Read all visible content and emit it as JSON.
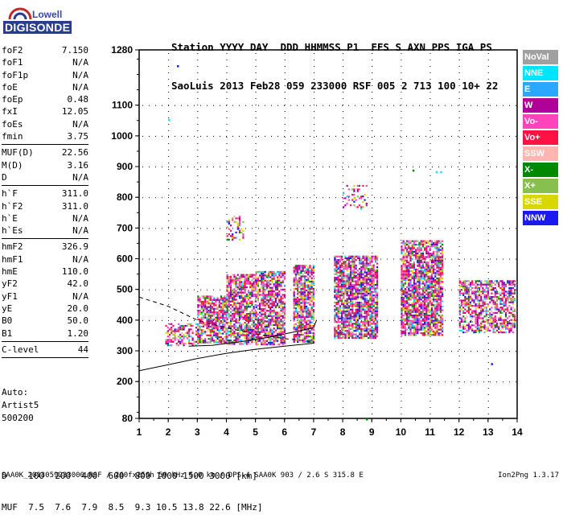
{
  "logo": {
    "line1": "Lowell",
    "line2": "DIGISONDE"
  },
  "header": {
    "line1": "Station YYYY DAY  DDD HHMMSS P1  FFS S AXN PPS IGA PS",
    "line2": "SaoLuis 2013 Feb28 059 233000 RSF 005 2 713 100 10+ 22"
  },
  "params": [
    {
      "label": "foF2",
      "value": "7.150"
    },
    {
      "label": "foF1",
      "value": "N/A"
    },
    {
      "label": "foF1p",
      "value": "N/A"
    },
    {
      "label": "foE",
      "value": "N/A"
    },
    {
      "label": "foEp",
      "value": "0.48"
    },
    {
      "label": "fxI",
      "value": "12.05"
    },
    {
      "label": "foEs",
      "value": "N/A"
    },
    {
      "label": "fmin",
      "value": "3.75"
    },
    {
      "sep": true
    },
    {
      "label": "MUF(D)",
      "value": "22.56"
    },
    {
      "label": "M(D)",
      "value": "3.16"
    },
    {
      "label": "D",
      "value": "N/A"
    },
    {
      "sep": true
    },
    {
      "label": "h`F",
      "value": "311.0"
    },
    {
      "label": "h`F2",
      "value": "311.0"
    },
    {
      "label": "h`E",
      "value": "N/A"
    },
    {
      "label": "h`Es",
      "value": "N/A"
    },
    {
      "sep": true
    },
    {
      "label": "hmF2",
      "value": "326.9"
    },
    {
      "label": "hmF1",
      "value": "N/A"
    },
    {
      "label": "hmE",
      "value": "110.0"
    },
    {
      "label": "yF2",
      "value": "42.0"
    },
    {
      "label": "yF1",
      "value": "N/A"
    },
    {
      "label": "yE",
      "value": "20.0"
    },
    {
      "label": "B0",
      "value": "50.0"
    },
    {
      "label": "B1",
      "value": "1.20"
    },
    {
      "sep": true
    },
    {
      "label": "C-level",
      "value": "44"
    },
    {
      "sep": true
    }
  ],
  "auto": {
    "line1": "Auto:",
    "line2": "Artist5",
    "line3": "500200"
  },
  "dtable": {
    "row1": "D    100  200  400  600  800 1000 1500 3000 [km]",
    "row2": "MUF  7.5  7.6  7.9  8.5  9.3 10.5 13.8 22.6 [MHz]"
  },
  "footer": {
    "left": "SAA0K_2013059233000.RSF / 260fx256h 50 kHz 5.0 km / DPS-4 SAA0K 903 / 2.6 S 315.8 E",
    "right": "Ion2Png 1.3.17"
  },
  "legend": [
    {
      "label": "NoVal",
      "color": "#a0a0a0"
    },
    {
      "label": "NNE",
      "color": "#00e5ff"
    },
    {
      "label": "E",
      "color": "#2aa7ff"
    },
    {
      "label": "W",
      "color": "#b0009a"
    },
    {
      "label": "Vo-",
      "color": "#ff44bb"
    },
    {
      "label": "Vo+",
      "color": "#ff1144"
    },
    {
      "label": "SSW",
      "color": "#ffb6b0"
    },
    {
      "label": "X-",
      "color": "#008800"
    },
    {
      "label": "X+",
      "color": "#88c050"
    },
    {
      "label": "SSE",
      "color": "#d8d800"
    },
    {
      "label": "NNW",
      "color": "#1a1aee"
    }
  ],
  "chart_data": {
    "type": "scatter",
    "xlim": [
      1,
      14
    ],
    "ylim": [
      80,
      1280
    ],
    "x_ticks": [
      "1",
      "2",
      "3",
      "4",
      "5",
      "6",
      "7",
      "8",
      "9",
      "10",
      "11",
      "12",
      "13",
      "14"
    ],
    "y_ticks": [
      "80",
      "200",
      "300",
      "400",
      "500",
      "600",
      "700",
      "800",
      "900",
      "1000",
      "1100",
      "1280"
    ],
    "grid": true,
    "clusters": [
      {
        "fmin": 1.9,
        "fmax": 3.0,
        "hmin": 320,
        "hmax": 390,
        "density": 0.55
      },
      {
        "fmin": 3.0,
        "fmax": 4.0,
        "hmin": 330,
        "hmax": 480,
        "density": 0.75
      },
      {
        "fmin": 4.0,
        "fmax": 5.0,
        "hmin": 320,
        "hmax": 550,
        "density": 0.75
      },
      {
        "fmin": 4.0,
        "fmax": 4.6,
        "hmin": 660,
        "hmax": 740,
        "density": 0.35
      },
      {
        "fmin": 5.0,
        "fmax": 6.0,
        "hmin": 320,
        "hmax": 560,
        "density": 0.75
      },
      {
        "fmin": 6.3,
        "fmax": 7.0,
        "hmin": 330,
        "hmax": 580,
        "density": 0.75
      },
      {
        "fmin": 7.7,
        "fmax": 9.2,
        "hmin": 340,
        "hmax": 610,
        "density": 0.8
      },
      {
        "fmin": 8.0,
        "fmax": 8.8,
        "hmin": 760,
        "hmax": 840,
        "density": 0.25
      },
      {
        "fmin": 10.0,
        "fmax": 11.4,
        "hmin": 350,
        "hmax": 660,
        "density": 0.8
      },
      {
        "fmin": 12.0,
        "fmax": 13.9,
        "hmin": 360,
        "hmax": 530,
        "density": 0.6
      }
    ],
    "trace_lower": [
      [
        1,
        235
      ],
      [
        2,
        255
      ],
      [
        3,
        275
      ],
      [
        4,
        292
      ],
      [
        5,
        305
      ],
      [
        6,
        315
      ],
      [
        7,
        325
      ]
    ],
    "trace_upper": [
      [
        1,
        475
      ],
      [
        2,
        445
      ],
      [
        3,
        400
      ],
      [
        4,
        375
      ],
      [
        5,
        355
      ],
      [
        6,
        340
      ],
      [
        7,
        330
      ]
    ],
    "trace_virtual": [
      [
        2.7,
        315
      ],
      [
        3.5,
        318
      ],
      [
        4.5,
        330
      ],
      [
        5.5,
        345
      ],
      [
        6.5,
        365
      ],
      [
        7.0,
        375
      ],
      [
        7.1,
        400
      ]
    ]
  }
}
